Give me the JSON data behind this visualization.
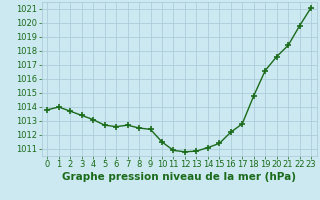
{
  "x": [
    0,
    1,
    2,
    3,
    4,
    5,
    6,
    7,
    8,
    9,
    10,
    11,
    12,
    13,
    14,
    15,
    16,
    17,
    18,
    19,
    20,
    21,
    22,
    23
  ],
  "y": [
    1013.8,
    1014.0,
    1013.7,
    1013.4,
    1013.1,
    1012.7,
    1012.6,
    1012.7,
    1012.5,
    1012.4,
    1011.5,
    1010.9,
    1010.8,
    1010.85,
    1011.1,
    1011.4,
    1012.2,
    1012.8,
    1014.8,
    1016.6,
    1017.6,
    1018.4,
    1019.8,
    1021.1
  ],
  "xlim": [
    -0.5,
    23.5
  ],
  "ylim": [
    1010.5,
    1021.5
  ],
  "yticks": [
    1011,
    1012,
    1013,
    1014,
    1015,
    1016,
    1017,
    1018,
    1019,
    1020,
    1021
  ],
  "xticks": [
    0,
    1,
    2,
    3,
    4,
    5,
    6,
    7,
    8,
    9,
    10,
    11,
    12,
    13,
    14,
    15,
    16,
    17,
    18,
    19,
    20,
    21,
    22,
    23
  ],
  "xlabel": "Graphe pression niveau de la mer (hPa)",
  "line_color": "#1a6b1a",
  "marker_color": "#1a6b1a",
  "bg_color": "#cce8f0",
  "grid_color": "#a8c8d8",
  "xlabel_color": "#1a6b1a",
  "tick_color": "#1a6b1a",
  "xlabel_fontsize": 7.5,
  "tick_fontsize": 6.0
}
